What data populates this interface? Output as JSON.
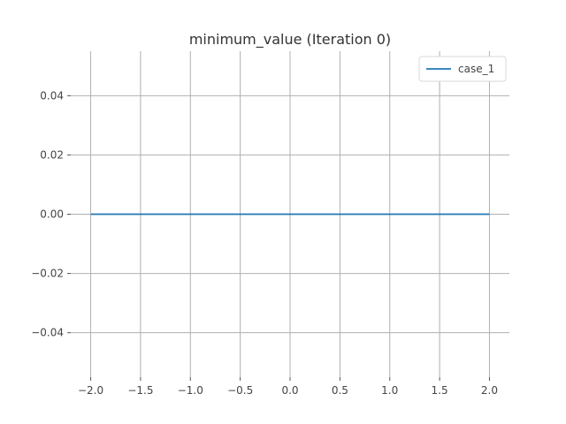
{
  "chart_data": {
    "type": "line",
    "title": "minimum_value (Iteration 0)",
    "xlabel": "",
    "ylabel": "",
    "xlim": [
      -2.2,
      2.2
    ],
    "ylim": [
      -0.055,
      0.055
    ],
    "xticks": [
      -2.0,
      -1.5,
      -1.0,
      -0.5,
      0.0,
      0.5,
      1.0,
      1.5,
      2.0
    ],
    "xtick_labels": [
      "−2.0",
      "−1.5",
      "−1.0",
      "−0.5",
      "0.0",
      "0.5",
      "1.0",
      "1.5",
      "2.0"
    ],
    "yticks": [
      -0.04,
      -0.02,
      0.0,
      0.02,
      0.04
    ],
    "ytick_labels": [
      "−0.04",
      "−0.02",
      "0.00",
      "0.02",
      "0.04"
    ],
    "grid": true,
    "legend_position": "top-right",
    "series": [
      {
        "name": "case_1",
        "color": "#1f77b4",
        "x": [
          -2.0,
          2.0
        ],
        "y": [
          0.0,
          0.0
        ]
      }
    ]
  }
}
